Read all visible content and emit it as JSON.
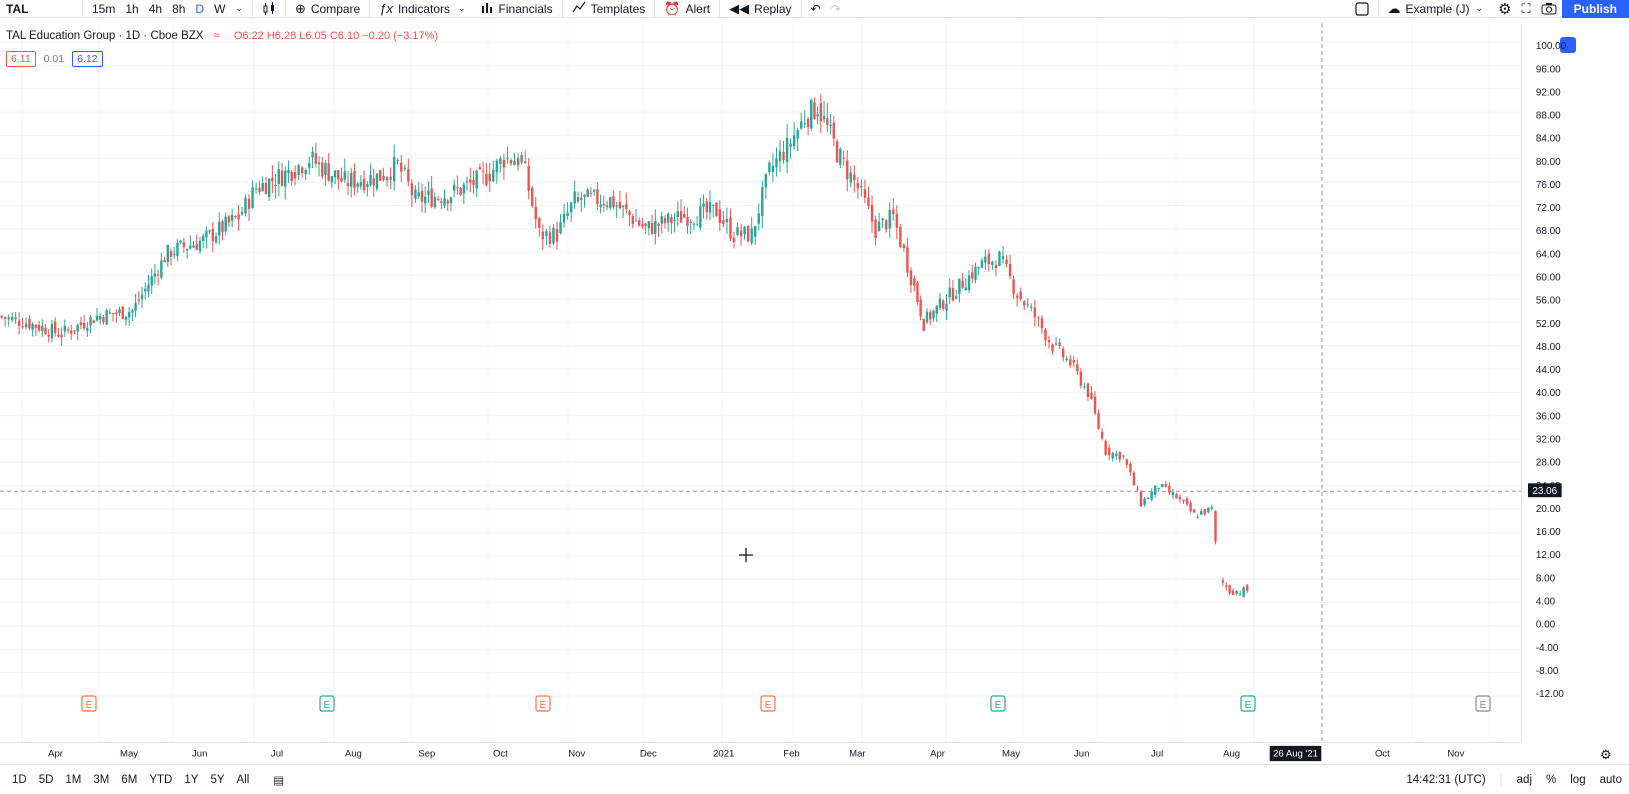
{
  "toolbar": {
    "symbol": "TAL",
    "intervals": [
      "15m",
      "1h",
      "4h",
      "8h",
      "D",
      "W"
    ],
    "active_interval": "D",
    "compare": "Compare",
    "indicators": "Indicators",
    "financials": "Financials",
    "templates": "Templates",
    "alert": "Alert",
    "replay": "Replay",
    "layout_name": "Example (J)",
    "publish": "Publish"
  },
  "legend": {
    "title": "TAL Education Group · 1D · Cboe BZX",
    "ohlc": "O6.22 H6.28 L6.05 C6.10 −0.20 (−3.17%)",
    "bid": "6.11",
    "spread": "0.01",
    "ask": "6.12"
  },
  "colors": {
    "up": "#26a69a",
    "down": "#ef5350",
    "accent": "#2962ff",
    "earnings_up": "#26a69a",
    "earnings_down": "#ff7043"
  },
  "price_axis": {
    "labels": [
      "100.00",
      "96.00",
      "92.00",
      "88.00",
      "84.00",
      "80.00",
      "76.00",
      "72.00",
      "68.00",
      "64.00",
      "60.00",
      "56.00",
      "52.00",
      "48.00",
      "44.00",
      "40.00",
      "36.00",
      "32.00",
      "28.00",
      "24.00",
      "20.00",
      "16.00",
      "12.00",
      "8.00",
      "4.00",
      "0.00",
      "-4.00",
      "-8.00",
      "-12.00"
    ],
    "crosshair_label": "23.06"
  },
  "time_axis": {
    "labels": [
      "Apr",
      "May",
      "Jun",
      "Jul",
      "Aug",
      "Sep",
      "Oct",
      "Nov",
      "Dec",
      "2021",
      "Feb",
      "Mar",
      "Apr",
      "May",
      "Jun",
      "Jul",
      "Aug",
      "Oct",
      "Nov"
    ],
    "crosshair_label": "26 Aug '21"
  },
  "earnings_markers": [
    {
      "label": "E",
      "color": "#ff7043"
    },
    {
      "label": "E",
      "color": "#26a69a"
    },
    {
      "label": "E",
      "color": "#ff7043"
    },
    {
      "label": "E",
      "color": "#ff7043"
    },
    {
      "label": "E",
      "color": "#26a69a"
    },
    {
      "label": "E",
      "color": "#26a69a"
    },
    {
      "label": "E",
      "color": "#888888"
    }
  ],
  "bottombar": {
    "ranges": [
      "1D",
      "5D",
      "1M",
      "3M",
      "6M",
      "YTD",
      "1Y",
      "5Y",
      "All"
    ],
    "time": "14:42:31 (UTC)",
    "adj": "adj",
    "percent": "%",
    "log": "log",
    "auto": "auto"
  },
  "chart_data": {
    "type": "candlestick",
    "title": "TAL Education Group · 1D · Cboe BZX",
    "ylim": [
      -12,
      100
    ],
    "price_path": [
      [
        "2020-03-30",
        53
      ],
      [
        "2020-04-10",
        52
      ],
      [
        "2020-04-24",
        50
      ],
      [
        "2020-05-08",
        53
      ],
      [
        "2020-05-22",
        54
      ],
      [
        "2020-06-05",
        64
      ],
      [
        "2020-06-19",
        66
      ],
      [
        "2020-07-03",
        70
      ],
      [
        "2020-07-10",
        75
      ],
      [
        "2020-07-24",
        78
      ],
      [
        "2020-07-31",
        80
      ],
      [
        "2020-08-14",
        76
      ],
      [
        "2020-08-28",
        77
      ],
      [
        "2020-09-04",
        79
      ],
      [
        "2020-09-11",
        73
      ],
      [
        "2020-09-25",
        74
      ],
      [
        "2020-10-09",
        77
      ],
      [
        "2020-10-16",
        80
      ],
      [
        "2020-10-23",
        80
      ],
      [
        "2020-10-30",
        67
      ],
      [
        "2020-11-06",
        67
      ],
      [
        "2020-11-13",
        73
      ],
      [
        "2020-11-27",
        73
      ],
      [
        "2020-12-11",
        68
      ],
      [
        "2020-12-25",
        70
      ],
      [
        "2021-01-08",
        71
      ],
      [
        "2021-01-15",
        67
      ],
      [
        "2021-01-22",
        67
      ],
      [
        "2021-01-29",
        78
      ],
      [
        "2021-02-05",
        82
      ],
      [
        "2021-02-12",
        87
      ],
      [
        "2021-02-17",
        89
      ],
      [
        "2021-02-26",
        80
      ],
      [
        "2021-03-05",
        75
      ],
      [
        "2021-03-12",
        68
      ],
      [
        "2021-03-19",
        70
      ],
      [
        "2021-03-26",
        60
      ],
      [
        "2021-03-31",
        52
      ],
      [
        "2021-04-09",
        56
      ],
      [
        "2021-04-23",
        62
      ],
      [
        "2021-04-30",
        63
      ],
      [
        "2021-05-07",
        57
      ],
      [
        "2021-05-14",
        53
      ],
      [
        "2021-05-21",
        48
      ],
      [
        "2021-05-28",
        45
      ],
      [
        "2021-06-04",
        40
      ],
      [
        "2021-06-11",
        30
      ],
      [
        "2021-06-18",
        29
      ],
      [
        "2021-06-25",
        21
      ],
      [
        "2021-07-02",
        24
      ],
      [
        "2021-07-09",
        22
      ],
      [
        "2021-07-16",
        19
      ],
      [
        "2021-07-23",
        20
      ],
      [
        "2021-07-26",
        8
      ],
      [
        "2021-07-30",
        6
      ],
      [
        "2021-08-06",
        6
      ]
    ]
  }
}
